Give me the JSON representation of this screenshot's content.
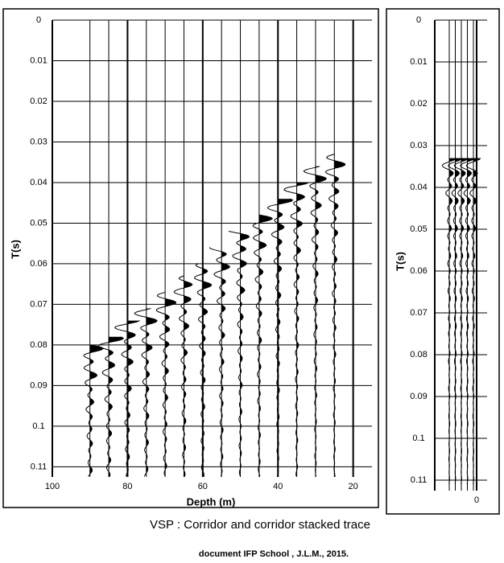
{
  "chart_data": [
    {
      "type": "wiggle",
      "y_label": "T(s)",
      "x_label": "Depth (m)",
      "ylim": [
        0,
        0.1125
      ],
      "yticks": [
        0,
        0.01,
        0.02,
        0.03,
        0.04,
        0.05,
        0.06,
        0.07,
        0.08,
        0.09,
        0.1,
        0.11
      ],
      "xlim": [
        100,
        15
      ],
      "xticks": [
        100,
        80,
        60,
        40,
        20
      ],
      "depths": [
        90,
        85,
        80,
        75,
        70,
        65,
        60,
        55,
        50,
        45,
        40,
        35,
        30,
        25
      ],
      "arrivals": [
        0.08,
        0.078,
        0.074,
        0.071,
        0.067,
        0.063,
        0.06,
        0.056,
        0.052,
        0.048,
        0.044,
        0.04,
        0.036,
        0.033
      ],
      "grid": true
    },
    {
      "type": "stacked-trace",
      "y_label": "T(s)",
      "ylim": [
        0,
        0.1125
      ],
      "yticks": [
        0,
        0.01,
        0.02,
        0.03,
        0.04,
        0.05,
        0.06,
        0.07,
        0.08,
        0.09,
        0.1,
        0.11
      ],
      "xlim": [
        -4,
        1
      ],
      "xticks": [
        0
      ],
      "window": [
        0.033,
        0.111
      ],
      "grid": true
    }
  ],
  "caption": "VSP : Corridor and corridor stacked trace",
  "credit": "document IFP School , J.L.M., 2015."
}
